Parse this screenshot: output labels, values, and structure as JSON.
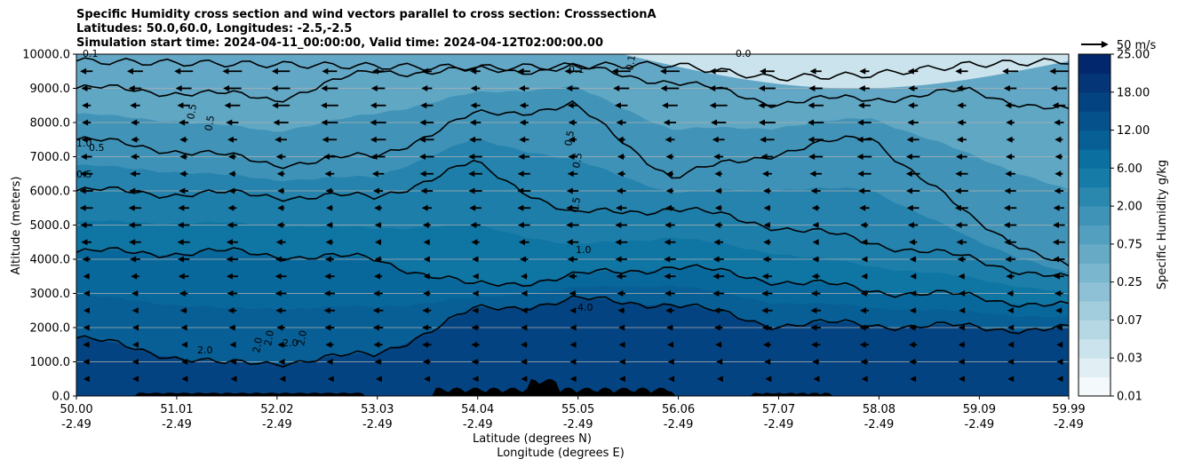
{
  "title": {
    "line1": "Specific Humidity cross section and wind vectors parallel to cross section: CrosssectionA",
    "line2": "Latitudes: 50.0,60.0, Longitudes: -2.5,-2.5",
    "line3": "Simulation start time: 2024-04-11_00:00:00, Valid time: 2024-04-12T02:00:00.00"
  },
  "chart_data": {
    "type": "heatmap",
    "description_kind": "filled contour cross section with contour lines and wind vectors",
    "xlabel_line1": "Latitude (degrees N)",
    "xlabel_line2": "Longitude (degrees E)",
    "ylabel": "Altitude (meters)",
    "ylim": [
      0,
      10000
    ],
    "xlim": [
      50.0,
      59.99
    ],
    "y_ticks": [
      "0.0",
      "1000.0",
      "2000.0",
      "3000.0",
      "4000.0",
      "5000.0",
      "6000.0",
      "7000.0",
      "8000.0",
      "9000.0",
      "10000.0"
    ],
    "x_ticks": [
      {
        "lat": "50.00",
        "lon": "-2.49"
      },
      {
        "lat": "51.01",
        "lon": "-2.49"
      },
      {
        "lat": "52.02",
        "lon": "-2.49"
      },
      {
        "lat": "53.03",
        "lon": "-2.49"
      },
      {
        "lat": "54.04",
        "lon": "-2.49"
      },
      {
        "lat": "55.05",
        "lon": "-2.49"
      },
      {
        "lat": "56.06",
        "lon": "-2.49"
      },
      {
        "lat": "57.07",
        "lon": "-2.49"
      },
      {
        "lat": "58.08",
        "lon": "-2.49"
      },
      {
        "lat": "59.09",
        "lon": "-2.49"
      },
      {
        "lat": "59.99",
        "lon": "-2.49"
      }
    ],
    "grid": "horizontal",
    "colorbar": {
      "label": "Specific Humidity g/kg",
      "tick_labels": [
        "0.01",
        "0.03",
        "0.07",
        "0.25",
        "0.75",
        "2.00",
        "6.00",
        "12.00",
        "18.00",
        "25.00"
      ],
      "levels": [
        0.01,
        0.02,
        0.03,
        0.05,
        0.07,
        0.1,
        0.25,
        0.5,
        0.75,
        1.0,
        2.0,
        4.0,
        6.0,
        9.0,
        12.0,
        15.0,
        18.0,
        21.0,
        25.0
      ],
      "colors": [
        "#f4f9fb",
        "#e1eff4",
        "#cbe3ec",
        "#b6d8e5",
        "#a2cddd",
        "#8ec1d6",
        "#7ab6ce",
        "#66aac6",
        "#529fbf",
        "#3e93b6",
        "#2a87ae",
        "#167ca7",
        "#0b6fa0",
        "#075f95",
        "#05518b",
        "#044381",
        "#033577",
        "#02276c"
      ]
    },
    "quiver_key": {
      "label": "50 m/s",
      "speed": 50
    },
    "contour_labels": [
      "0.1",
      "0.1",
      "0.0",
      "0.1",
      "0.5",
      "0.5",
      "0.5",
      "0.5",
      "0.5",
      "0.5",
      "0.5",
      "1.0",
      "2.0",
      "2.0",
      "2.0",
      "2.0",
      "2.0",
      "4.0",
      "1.0"
    ],
    "contour_levels_approx_altitude_by_lat": [
      {
        "level": "4.0",
        "lat": [
          50.0,
          51.5,
          53.0,
          54.0,
          55.0,
          56.0,
          57.0,
          58.0,
          59.0,
          59.99
        ],
        "alt": [
          1700,
          900,
          1200,
          2500,
          2800,
          2700,
          2100,
          2100,
          2000,
          1950
        ]
      },
      {
        "level": "2.0",
        "lat": [
          50.0,
          51.5,
          53.0,
          54.0,
          55.0,
          56.0,
          57.0,
          58.0,
          59.0,
          59.99
        ],
        "alt": [
          4200,
          4200,
          4000,
          3200,
          3500,
          3800,
          3400,
          3100,
          2900,
          2600
        ]
      },
      {
        "level": "1.0",
        "lat": [
          50.0,
          51.5,
          53.0,
          54.0,
          55.0,
          56.0,
          57.0,
          58.0,
          59.0,
          59.99
        ],
        "alt": [
          6000,
          5900,
          5800,
          6800,
          5300,
          5500,
          5000,
          4500,
          4000,
          3400
        ]
      },
      {
        "level": "0.5",
        "lat": [
          50.0,
          51.0,
          52.0,
          53.0,
          54.0,
          55.0,
          56.0,
          57.0,
          58.0,
          59.0,
          59.99
        ],
        "alt": [
          7500,
          7200,
          6800,
          7000,
          8200,
          8500,
          6400,
          7100,
          7600,
          5200,
          3700
        ]
      },
      {
        "level": "0.1",
        "lat": [
          50.0,
          51.0,
          52.0,
          53.0,
          54.0,
          55.0,
          56.0,
          57.0,
          58.0,
          59.0,
          59.99
        ],
        "alt": [
          9000,
          8900,
          8700,
          9500,
          9500,
          9600,
          9200,
          8600,
          8700,
          8900,
          8300
        ]
      }
    ],
    "wind": {
      "u_ms_by_altitude_m": {
        "500": -8,
        "1500": -12,
        "2500": -14,
        "3500": -15,
        "4500": -16,
        "5500": -17,
        "6500": -18,
        "7500": -20,
        "8500": -23,
        "9500": -25
      },
      "v_perpendicular_note": "vectors nearly horizontal, pointing south (leftward)"
    }
  }
}
